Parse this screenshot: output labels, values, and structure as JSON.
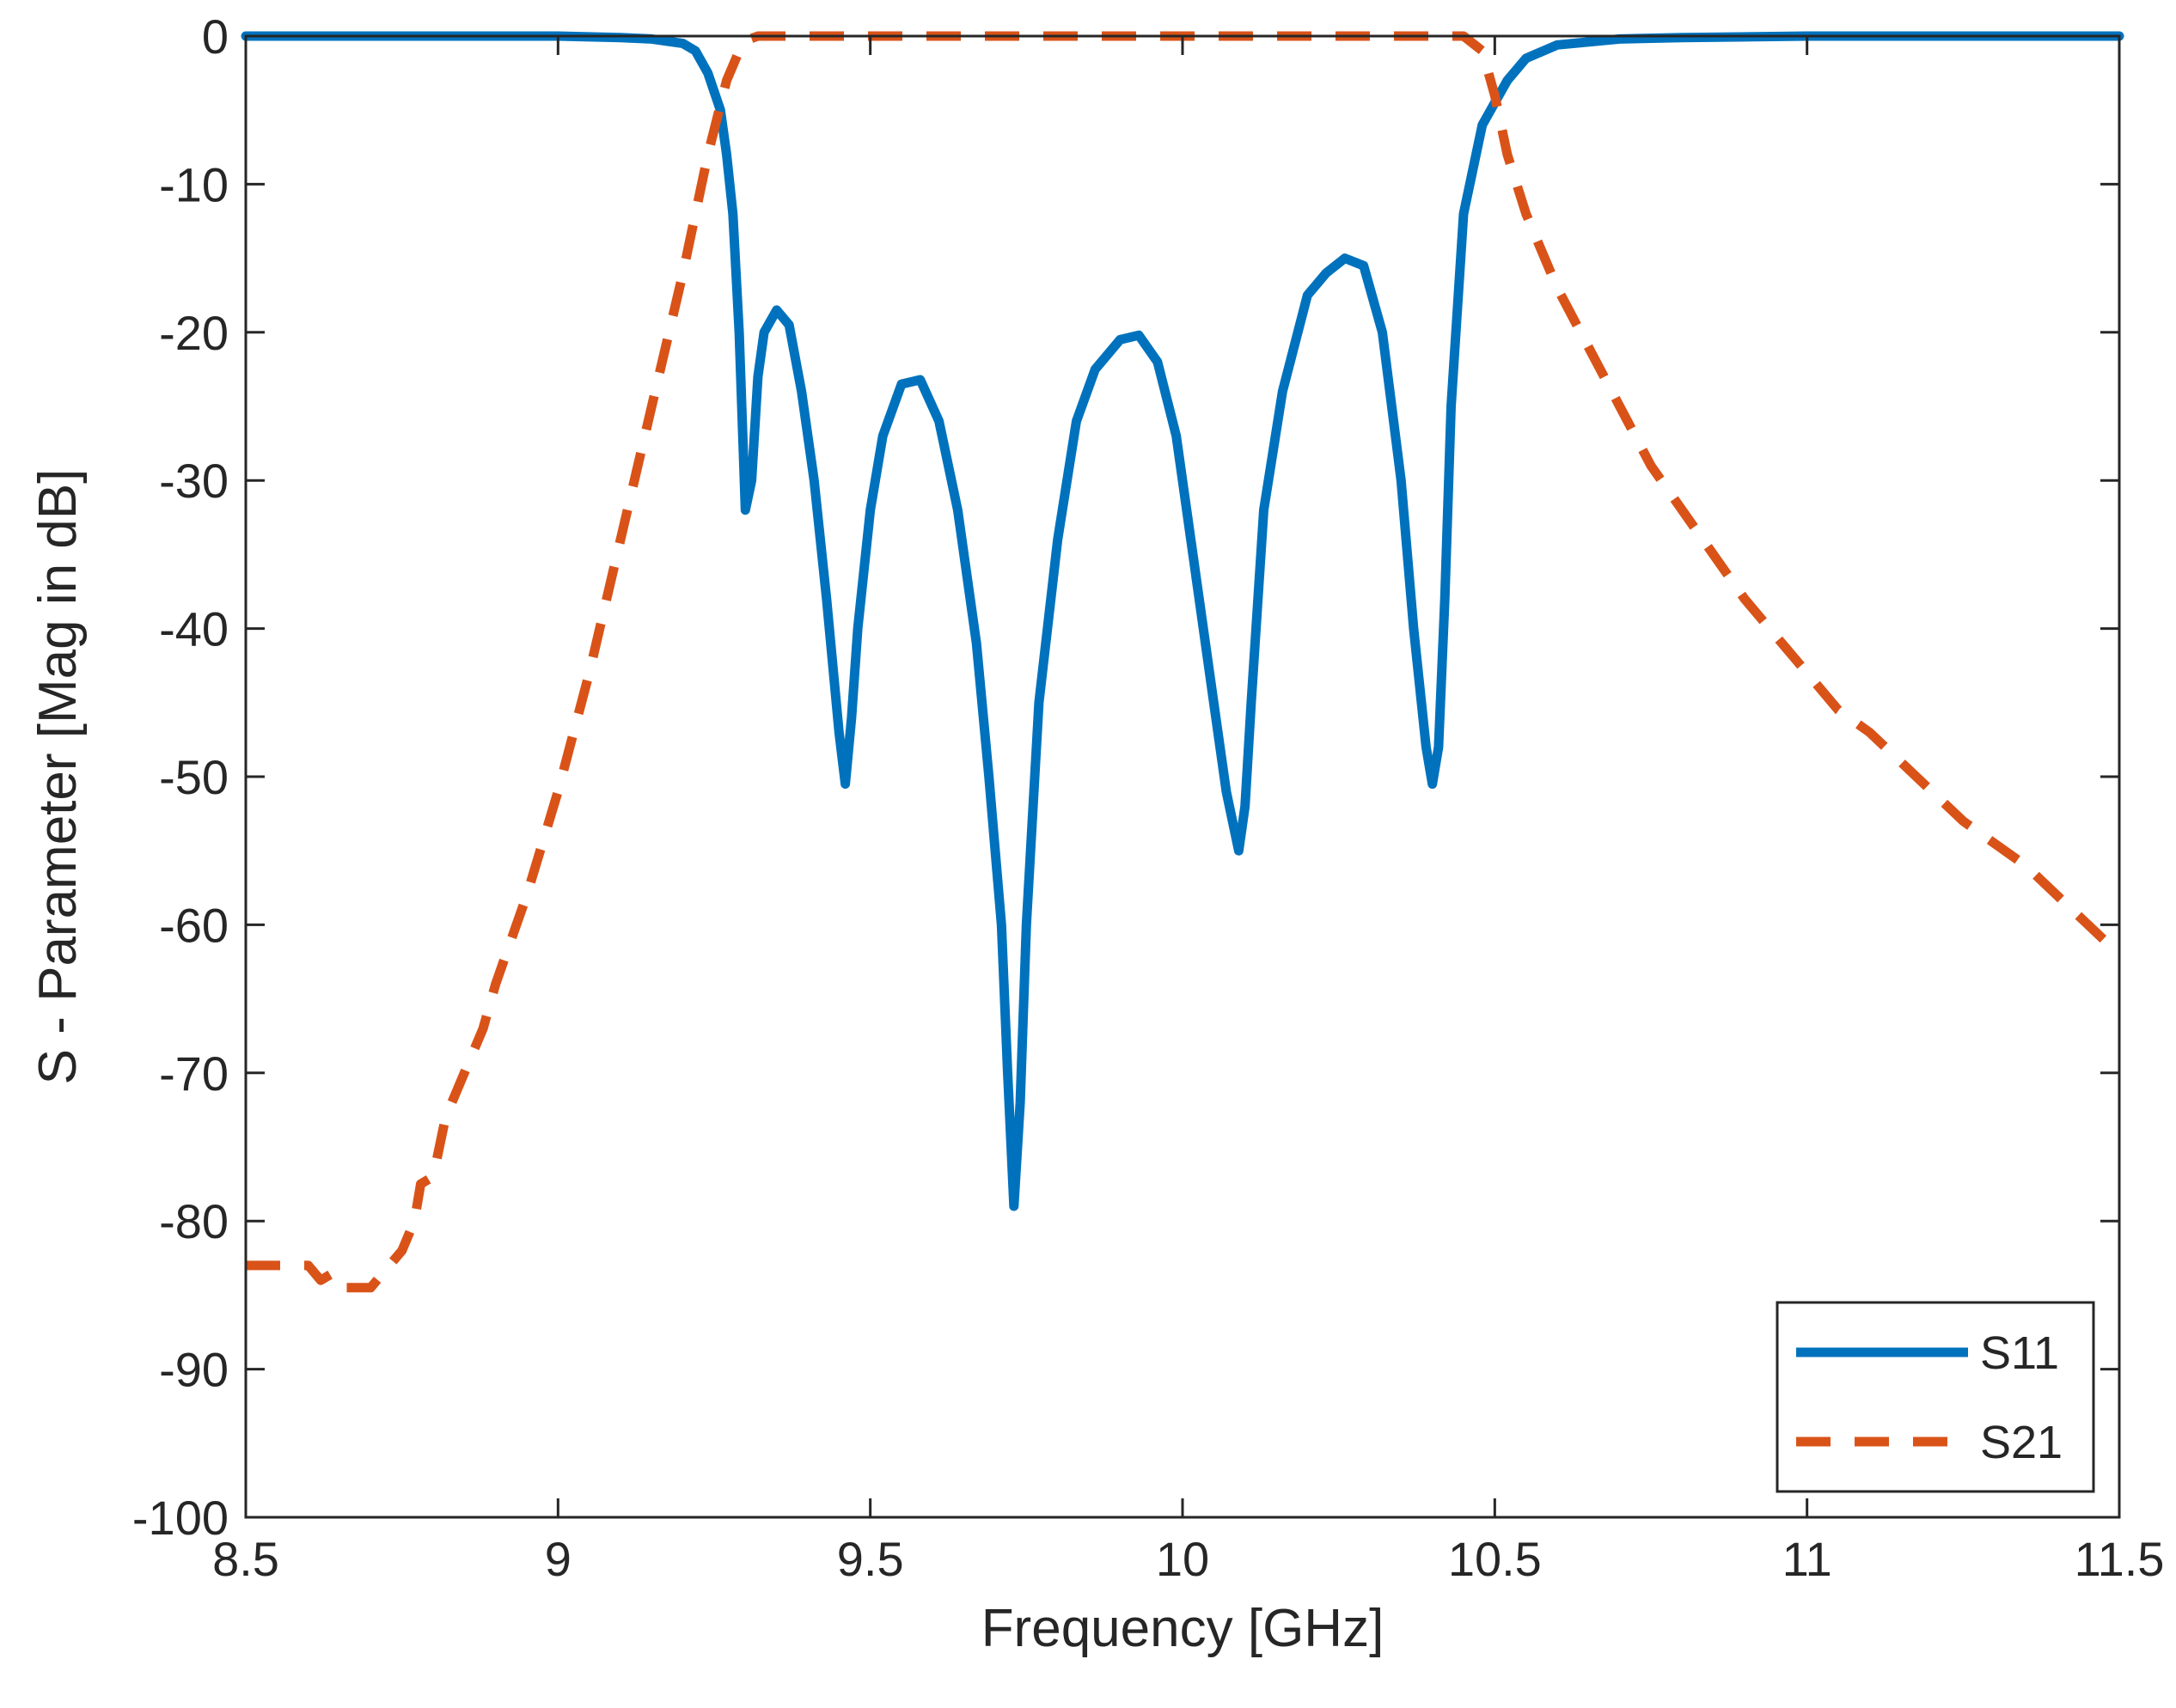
{
  "chart_data": {
    "type": "line",
    "title": "",
    "xlabel": "Frequency [GHz]",
    "ylabel": "S - Parameter [Mag in dB]",
    "xlim": [
      8.5,
      11.5
    ],
    "ylim": [
      -100,
      0
    ],
    "xticks": [
      8.5,
      9,
      9.5,
      10,
      10.5,
      11,
      11.5
    ],
    "xtick_labels": [
      "8.5",
      "9",
      "9.5",
      "10",
      "10.5",
      "11",
      "11.5"
    ],
    "yticks": [
      0,
      -10,
      -20,
      -30,
      -40,
      -50,
      -60,
      -70,
      -80,
      -90,
      -100
    ],
    "ytick_labels": [
      "0",
      "-10",
      "-20",
      "-30",
      "-40",
      "-50",
      "-60",
      "-70",
      "-80",
      "-90",
      "-100"
    ],
    "grid": false,
    "legend_position": "bottom-right",
    "series": [
      {
        "name": "S11",
        "color": "#0072BD",
        "style": "solid",
        "x": [
          8.5,
          9.0,
          9.1,
          9.15,
          9.2,
          9.22,
          9.24,
          9.26,
          9.27,
          9.28,
          9.29,
          9.3,
          9.31,
          9.32,
          9.33,
          9.35,
          9.37,
          9.39,
          9.41,
          9.43,
          9.45,
          9.46,
          9.47,
          9.48,
          9.5,
          9.52,
          9.55,
          9.58,
          9.61,
          9.64,
          9.67,
          9.69,
          9.71,
          9.72,
          9.73,
          9.74,
          9.75,
          9.77,
          9.8,
          9.83,
          9.86,
          9.9,
          9.93,
          9.96,
          9.99,
          10.02,
          10.05,
          10.07,
          10.09,
          10.1,
          10.11,
          10.13,
          10.16,
          10.2,
          10.23,
          10.26,
          10.29,
          10.32,
          10.35,
          10.37,
          10.39,
          10.4,
          10.41,
          10.42,
          10.43,
          10.45,
          10.48,
          10.52,
          10.55,
          10.6,
          10.7,
          10.8,
          11.0,
          11.5
        ],
        "y": [
          0,
          0,
          -0.1,
          -0.2,
          -0.5,
          -1.0,
          -2.5,
          -5.0,
          -8.0,
          -12.0,
          -20.0,
          -32.0,
          -30.0,
          -23.0,
          -20.0,
          -18.5,
          -19.5,
          -24.0,
          -30.0,
          -38.0,
          -47.0,
          -50.5,
          -46.0,
          -40.0,
          -32.0,
          -27.0,
          -23.5,
          -23.2,
          -26.0,
          -32.0,
          -41.0,
          -50.0,
          -60.0,
          -70.0,
          -79.0,
          -72.0,
          -60.0,
          -45.0,
          -34.0,
          -26.0,
          -22.5,
          -20.5,
          -20.2,
          -22.0,
          -27.0,
          -36.0,
          -45.0,
          -51.0,
          -55.0,
          -52.0,
          -45.0,
          -32.0,
          -24.0,
          -17.5,
          -16.0,
          -15.0,
          -15.5,
          -20.0,
          -30.0,
          -40.0,
          -48.0,
          -50.5,
          -48.0,
          -38.0,
          -25.0,
          -12.0,
          -6.0,
          -3.0,
          -1.5,
          -0.6,
          -0.2,
          -0.1,
          0,
          0
        ]
      },
      {
        "name": "S21",
        "color": "#D95319",
        "style": "dashed",
        "x": [
          8.5,
          8.55,
          8.6,
          8.62,
          8.64,
          8.66,
          8.7,
          8.72,
          8.75,
          8.77,
          8.78,
          8.8,
          8.82,
          8.85,
          8.88,
          8.9,
          8.95,
          9.0,
          9.05,
          9.1,
          9.15,
          9.2,
          9.24,
          9.27,
          9.29,
          9.3,
          9.32,
          9.5,
          10.0,
          10.45,
          10.48,
          10.5,
          10.52,
          10.55,
          10.6,
          10.65,
          10.7,
          10.75,
          10.8,
          10.85,
          10.9,
          10.95,
          11.0,
          11.05,
          11.1,
          11.15,
          11.2,
          11.25,
          11.3,
          11.35,
          11.4,
          11.45,
          11.5
        ],
        "y": [
          -83.0,
          -83.0,
          -83.0,
          -84.0,
          -83.5,
          -84.5,
          -84.5,
          -83.5,
          -82.0,
          -80.0,
          -77.5,
          -77.0,
          -73.0,
          -70.0,
          -67.0,
          -64.0,
          -58.0,
          -51.0,
          -43.0,
          -34.0,
          -25.0,
          -16.0,
          -8.0,
          -3.0,
          -1.0,
          -0.3,
          0,
          0,
          0,
          0,
          -1.0,
          -4.0,
          -8.0,
          -12.0,
          -17.0,
          -21.0,
          -25.0,
          -29.0,
          -32.0,
          -35.0,
          -38.0,
          -40.5,
          -43.0,
          -45.5,
          -47.0,
          -49.0,
          -51.0,
          -53.0,
          -54.5,
          -56.0,
          -58.0,
          -60.0,
          -62.0
        ]
      }
    ]
  }
}
